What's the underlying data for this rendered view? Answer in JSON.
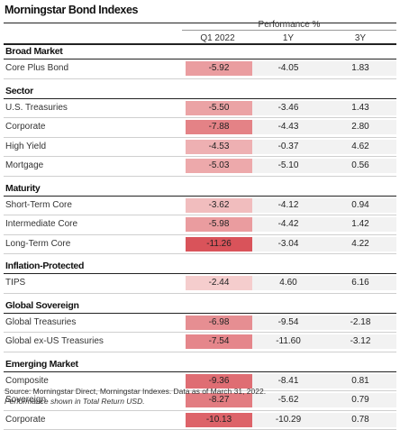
{
  "title": "Morningstar Bond Indexes",
  "performance_header": "Performance %",
  "columns": [
    "Q1 2022",
    "1Y",
    "3Y"
  ],
  "sections": [
    {
      "name": "Broad Market",
      "rows": [
        {
          "label": "Core Plus Bond",
          "q1": "-5.92",
          "y1": "-4.05",
          "y3": "1.83"
        }
      ]
    },
    {
      "name": "Sector",
      "rows": [
        {
          "label": "U.S. Treasuries",
          "q1": "-5.50",
          "y1": "-3.46",
          "y3": "1.43"
        },
        {
          "label": "Corporate",
          "q1": "-7.88",
          "y1": "-4.43",
          "y3": "2.80"
        },
        {
          "label": "High Yield",
          "q1": "-4.53",
          "y1": "-0.37",
          "y3": "4.62"
        },
        {
          "label": "Mortgage",
          "q1": "-5.03",
          "y1": "-5.10",
          "y3": "0.56"
        }
      ]
    },
    {
      "name": "Maturity",
      "rows": [
        {
          "label": "Short-Term Core",
          "q1": "-3.62",
          "y1": "-4.12",
          "y3": "0.94"
        },
        {
          "label": "Intermediate Core",
          "q1": "-5.98",
          "y1": "-4.42",
          "y3": "1.42"
        },
        {
          "label": "Long-Term Core",
          "q1": "-11.26",
          "y1": "-3.04",
          "y3": "4.22"
        }
      ]
    },
    {
      "name": "Inflation-Protected",
      "rows": [
        {
          "label": "TIPS",
          "q1": "-2.44",
          "y1": "4.60",
          "y3": "6.16"
        }
      ]
    },
    {
      "name": "Global Sovereign",
      "rows": [
        {
          "label": "Global Treasuries",
          "q1": "-6.98",
          "y1": "-9.54",
          "y3": "-2.18"
        },
        {
          "label": "Global ex-US Treasuries",
          "q1": "-7.54",
          "y1": "-11.60",
          "y3": "-3.12"
        }
      ]
    },
    {
      "name": "Emerging Market",
      "rows": [
        {
          "label": "Composite",
          "q1": "-9.36",
          "y1": "-8.41",
          "y3": "0.81"
        },
        {
          "label": "Sovereign",
          "q1": "-8.27",
          "y1": "-5.62",
          "y3": "0.79"
        },
        {
          "label": "Corporate",
          "q1": "-10.13",
          "y1": "-10.29",
          "y3": "0.78"
        }
      ]
    }
  ],
  "source": "Source: Morningstar Direct, Morningstar Indexes. Data as of March 31, 2022.",
  "source_note": "Performance shown in Total Return USD.",
  "colors": {
    "heat_light": "#f6d3d3",
    "heat_dark": "#d9535a",
    "cell_neutral": "#f2f2f2"
  }
}
